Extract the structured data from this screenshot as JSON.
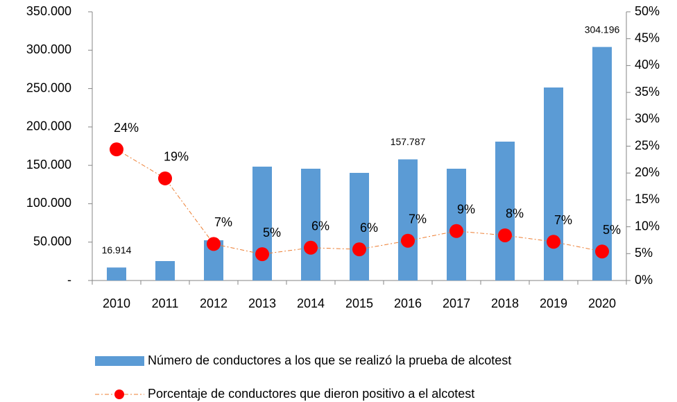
{
  "chart_data": {
    "type": "bar",
    "categories": [
      "2010",
      "2011",
      "2012",
      "2013",
      "2014",
      "2015",
      "2016",
      "2017",
      "2018",
      "2019",
      "2020"
    ],
    "ylim": [
      0,
      350000
    ],
    "yticks": [
      {
        "value": 0,
        "label": "-"
      },
      {
        "value": 50000,
        "label": "50.000"
      },
      {
        "value": 100000,
        "label": "100.000"
      },
      {
        "value": 150000,
        "label": "150.000"
      },
      {
        "value": 200000,
        "label": "200.000"
      },
      {
        "value": 250000,
        "label": "250.000"
      },
      {
        "value": 300000,
        "label": "300.000"
      },
      {
        "value": 350000,
        "label": "350.000"
      }
    ],
    "y2lim": [
      0,
      50
    ],
    "y2ticks": [
      {
        "value": 0,
        "label": "0%"
      },
      {
        "value": 5,
        "label": "5%"
      },
      {
        "value": 10,
        "label": "10%"
      },
      {
        "value": 15,
        "label": "15%"
      },
      {
        "value": 20,
        "label": "20%"
      },
      {
        "value": 25,
        "label": "25%"
      },
      {
        "value": 30,
        "label": "30%"
      },
      {
        "value": 35,
        "label": "35%"
      },
      {
        "value": 40,
        "label": "40%"
      },
      {
        "value": 45,
        "label": "45%"
      },
      {
        "value": 50,
        "label": "50%"
      }
    ],
    "series": [
      {
        "name": "Número de conductores a los que se realizó la prueba de alcotest",
        "type": "bar",
        "color": "#5b9bd5",
        "values": [
          16914,
          25300,
          52400,
          148300,
          145600,
          140200,
          157787,
          145600,
          180900,
          251400,
          304196
        ],
        "value_labels": [
          "16.914",
          null,
          null,
          null,
          null,
          null,
          "157.787",
          null,
          null,
          null,
          "304.196"
        ]
      },
      {
        "name": "Porcentaje de conductores que dieron positivo a el alcotest",
        "type": "line",
        "axis": "y2",
        "color": "#ff0000",
        "values": [
          24.4,
          19.0,
          6.8,
          4.9,
          6.1,
          5.8,
          7.4,
          9.2,
          8.4,
          7.2,
          5.4
        ],
        "value_labels": [
          "24%",
          "19%",
          "7%",
          "5%",
          "6%",
          "6%",
          "7%",
          "9%",
          "8%",
          "7%",
          "5%"
        ]
      }
    ]
  }
}
